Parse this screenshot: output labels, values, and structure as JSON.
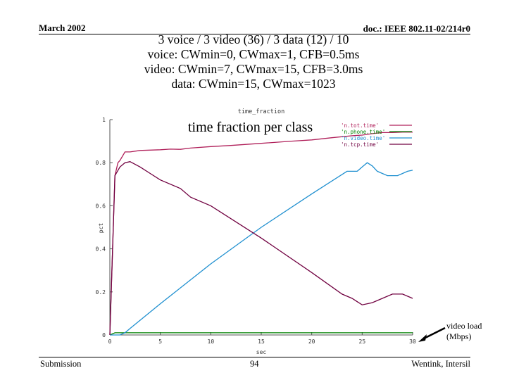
{
  "header": {
    "date": "March 2002",
    "doc": "doc.: IEEE 802.11-02/214r0"
  },
  "slide": {
    "title_lines": [
      "3 voice / 3 video (36) / 3 data (12) / 10",
      "voice: CWmin=0, CWmax=1, CFB=0.5ms",
      "video: CWmin=7, CWmax=15, CFB=3.0ms",
      "data: CWmin=15, CWmax=1023"
    ],
    "overlay_title": "time fraction per class",
    "annotation": [
      "video load",
      "(Mbps)"
    ]
  },
  "footer": {
    "left": "Submission",
    "page": "94",
    "right": "Wentink, Intersil"
  },
  "chart_data": {
    "type": "line",
    "title": "time_fraction",
    "xlabel": "sec",
    "ylabel": "pct",
    "xlim": [
      0,
      30
    ],
    "ylim": [
      0,
      1
    ],
    "xticks": [
      0,
      5,
      10,
      15,
      20,
      25,
      30
    ],
    "xtick_labels": [
      "0",
      "5",
      "10",
      "15",
      "20",
      "25",
      "30"
    ],
    "yticks": [
      0,
      0.2,
      0.4,
      0.6,
      0.8,
      1
    ],
    "ytick_labels": [
      "0",
      "0.2",
      "0.4",
      "0.6",
      "0.8",
      "1"
    ],
    "grid": false,
    "legend_position": "top-right",
    "series": [
      {
        "name": "'n.tot.time'",
        "color": "#b0205a",
        "x": [
          0,
          0.5,
          0.8,
          1,
          1.5,
          2,
          3,
          5,
          6,
          7,
          8,
          10,
          12,
          15,
          18,
          20,
          22,
          24,
          25,
          26,
          27,
          28,
          29,
          30
        ],
        "y": [
          0,
          0.74,
          0.8,
          0.81,
          0.85,
          0.85,
          0.857,
          0.86,
          0.863,
          0.862,
          0.868,
          0.875,
          0.88,
          0.89,
          0.9,
          0.906,
          0.916,
          0.925,
          0.928,
          0.935,
          0.94,
          0.94,
          0.942,
          0.942
        ]
      },
      {
        "name": "'n.phone.time'",
        "color": "#008000",
        "x": [
          0,
          0.5,
          1,
          30
        ],
        "y": [
          0,
          0.01,
          0.01,
          0.01
        ]
      },
      {
        "name": "'n.video.time'",
        "color": "#2090d0",
        "x": [
          0,
          0.5,
          1,
          1.5,
          2,
          5,
          10,
          15,
          20,
          23.5,
          24.5,
          25,
          25.5,
          26,
          26.5,
          27.5,
          28.5,
          29,
          29.5,
          30
        ],
        "y": [
          0,
          0,
          0,
          0.01,
          0.03,
          0.145,
          0.33,
          0.5,
          0.655,
          0.76,
          0.76,
          0.78,
          0.8,
          0.785,
          0.76,
          0.74,
          0.74,
          0.75,
          0.76,
          0.765
        ]
      },
      {
        "name": "'n.tcp.time'",
        "color": "#700040",
        "x": [
          0,
          0.5,
          1,
          1.5,
          2,
          3,
          4,
          5,
          7,
          8,
          10,
          15,
          20,
          23,
          24,
          25,
          26,
          27,
          28,
          29,
          30
        ],
        "y": [
          0,
          0.74,
          0.78,
          0.8,
          0.805,
          0.78,
          0.75,
          0.72,
          0.68,
          0.64,
          0.6,
          0.45,
          0.29,
          0.19,
          0.17,
          0.14,
          0.15,
          0.17,
          0.19,
          0.19,
          0.17
        ]
      }
    ]
  }
}
